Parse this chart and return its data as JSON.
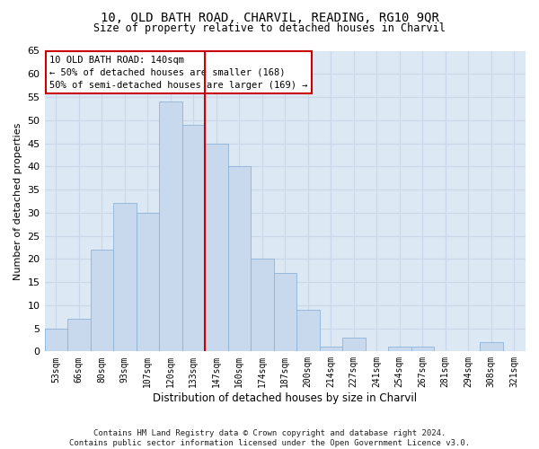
{
  "title": "10, OLD BATH ROAD, CHARVIL, READING, RG10 9QR",
  "subtitle": "Size of property relative to detached houses in Charvil",
  "xlabel": "Distribution of detached houses by size in Charvil",
  "ylabel": "Number of detached properties",
  "bar_labels": [
    "53sqm",
    "66sqm",
    "80sqm",
    "93sqm",
    "107sqm",
    "120sqm",
    "133sqm",
    "147sqm",
    "160sqm",
    "174sqm",
    "187sqm",
    "200sqm",
    "214sqm",
    "227sqm",
    "241sqm",
    "254sqm",
    "267sqm",
    "281sqm",
    "294sqm",
    "308sqm",
    "321sqm"
  ],
  "bar_values": [
    5,
    7,
    22,
    32,
    30,
    54,
    49,
    45,
    40,
    20,
    17,
    9,
    1,
    3,
    0,
    1,
    1,
    0,
    0,
    2,
    0
  ],
  "bar_color": "#c8d9ee",
  "bar_edge_color": "#8db4d8",
  "vline_x": 6.5,
  "vline_color": "#cc0000",
  "annotation_text": "10 OLD BATH ROAD: 140sqm\n← 50% of detached houses are smaller (168)\n50% of semi-detached houses are larger (169) →",
  "annotation_box_color": "#ffffff",
  "annotation_box_edge_color": "#cc0000",
  "ylim": [
    0,
    65
  ],
  "yticks": [
    0,
    5,
    10,
    15,
    20,
    25,
    30,
    35,
    40,
    45,
    50,
    55,
    60,
    65
  ],
  "grid_color": "#c8d8e8",
  "bg_color": "#dce8f4",
  "fig_bg_color": "#ffffff",
  "footer": "Contains HM Land Registry data © Crown copyright and database right 2024.\nContains public sector information licensed under the Open Government Licence v3.0."
}
